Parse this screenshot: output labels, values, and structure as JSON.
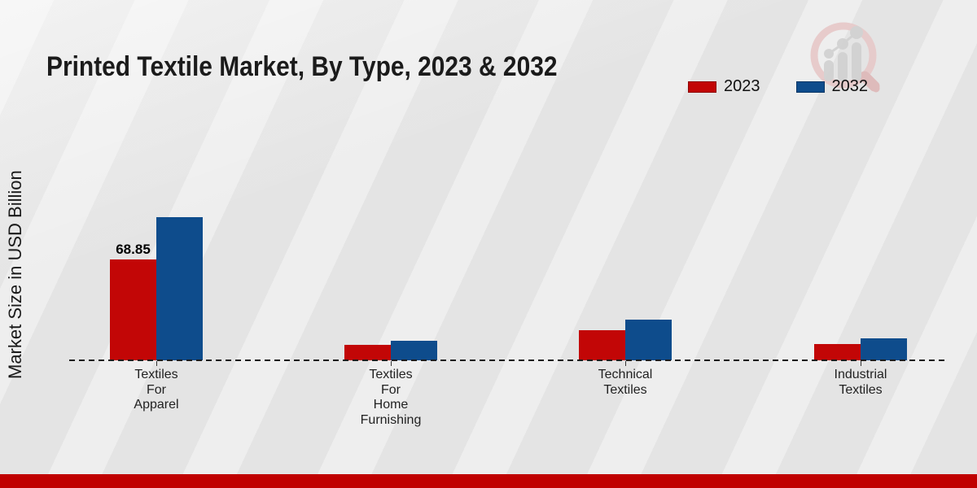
{
  "page": {
    "title": "Printed Textile Market, By Type, 2023 & 2032"
  },
  "ylabel": "Market Size in USD Billion",
  "legend": {
    "items": [
      {
        "label": "2023",
        "color": "#c20606"
      },
      {
        "label": "2032",
        "color": "#0e4c8c"
      }
    ]
  },
  "logo": {
    "name": "market-research-magnifier-chart-logo"
  },
  "footer": {
    "color": "#c00000"
  },
  "chart_data": {
    "type": "bar",
    "title": "Printed Textile Market, By Type, 2023 & 2032",
    "xlabel": "",
    "ylabel": "Market Size in USD Billion",
    "categories": [
      "Textiles For Apparel",
      "Textiles For Home Furnishing",
      "Technical Textiles",
      "Industrial Textiles"
    ],
    "category_lines": [
      [
        "Textiles",
        "For",
        "Apparel"
      ],
      [
        "Textiles",
        "For",
        "Home",
        "Furnishing"
      ],
      [
        "Technical",
        "Textiles"
      ],
      [
        "Industrial",
        "Textiles"
      ]
    ],
    "series": [
      {
        "name": "2023",
        "color": "#c20606",
        "values": [
          68.85,
          10.5,
          20.5,
          11.1
        ]
      },
      {
        "name": "2032",
        "color": "#0e4c8c",
        "values": [
          97.7,
          13.3,
          27.8,
          15.0
        ]
      }
    ],
    "data_labels": [
      {
        "series": "2023",
        "category": "Textiles For Apparel",
        "text": "68.85"
      }
    ],
    "ylim": [
      0,
      110
    ],
    "grid": false,
    "baseline_style": "dashed",
    "legend_position": "top-right"
  }
}
